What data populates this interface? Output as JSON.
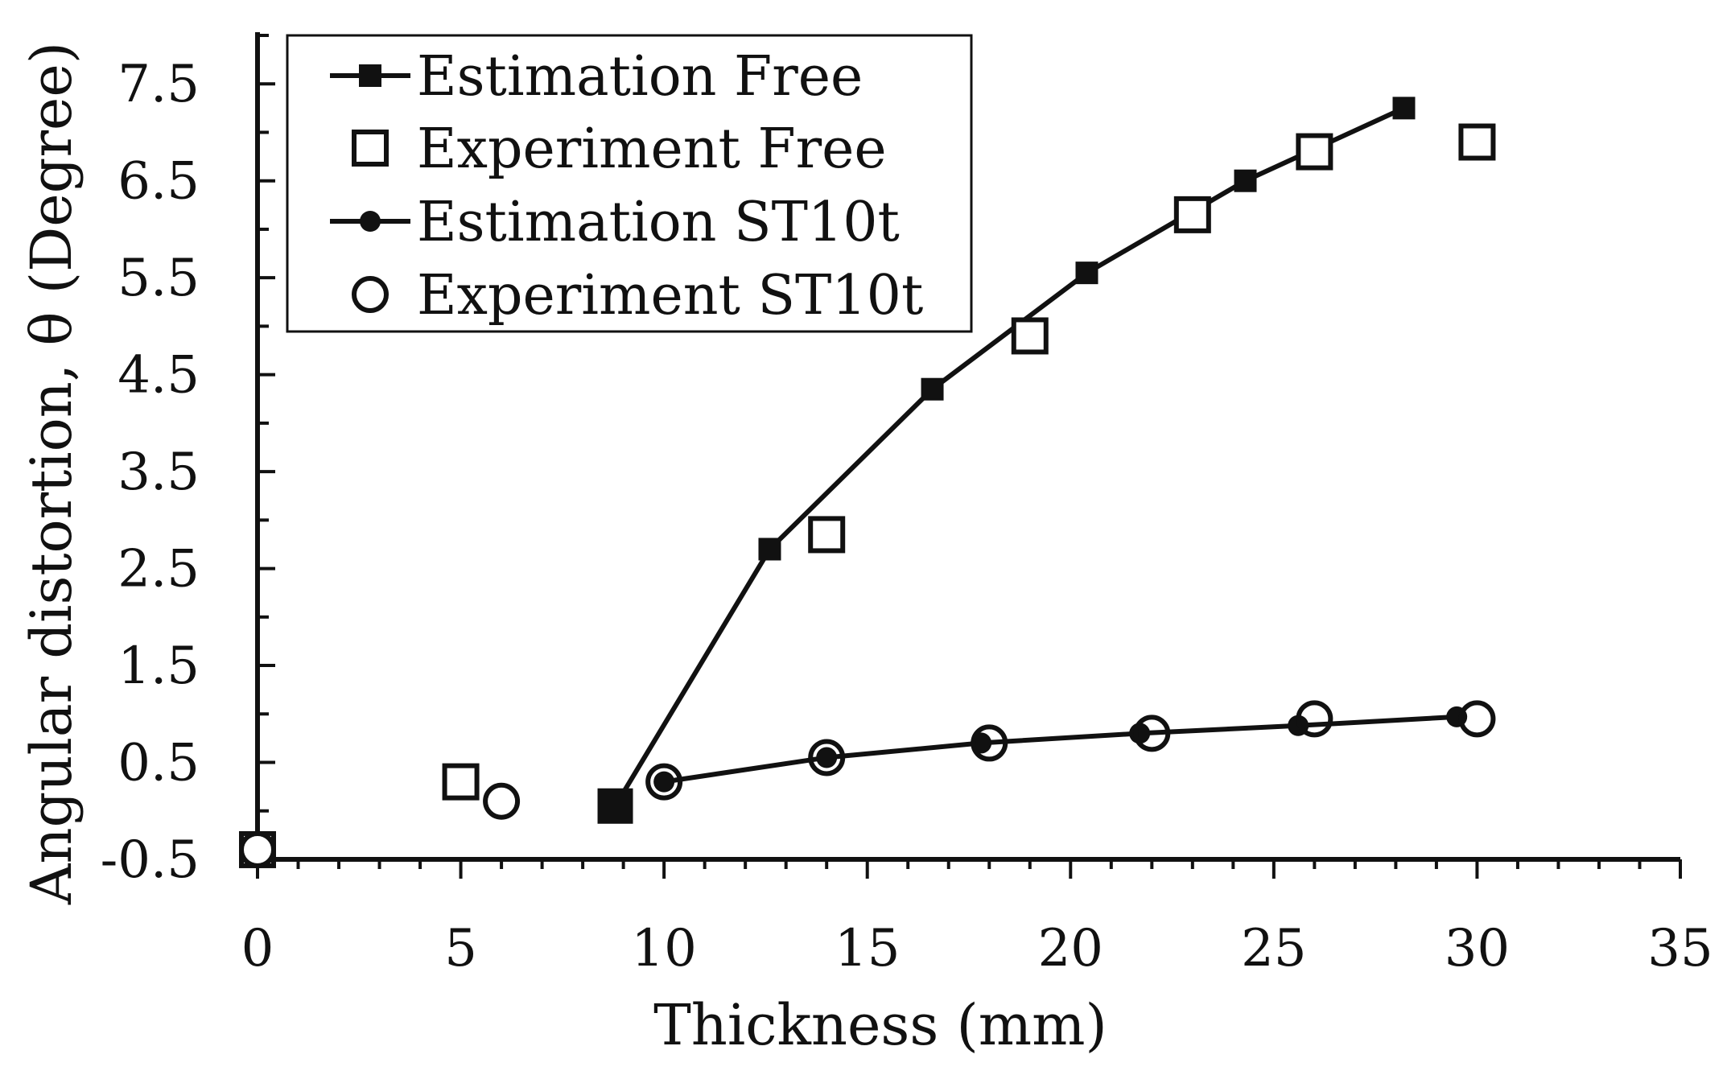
{
  "chart_data": {
    "type": "scatter",
    "title": "",
    "xlabel": "Thickness (mm)",
    "ylabel": "Angular distortion, θ (Degree)",
    "xlim": [
      0,
      35
    ],
    "ylim": [
      -0.5,
      8.0
    ],
    "x_ticks": [
      0,
      5,
      10,
      15,
      20,
      25,
      30,
      35
    ],
    "x_tick_labels": [
      "0",
      "5",
      "10",
      "15",
      "20",
      "25",
      "30",
      "35"
    ],
    "y_ticks": [
      -0.5,
      0.5,
      1.5,
      2.5,
      3.5,
      4.5,
      5.5,
      6.5,
      7.5
    ],
    "y_tick_labels": [
      "-0.5",
      "0.5",
      "1.5",
      "2.5",
      "3.5",
      "4.5",
      "5.5",
      "6.5",
      "7.5"
    ],
    "grid": false,
    "legend_position": "top-left",
    "series": [
      {
        "name": "Estimation Free",
        "style": "line-filled-square",
        "x": [
          0,
          8.8,
          12.6,
          16.6,
          20.4,
          24.3,
          28.2
        ],
        "y": [
          -0.4,
          0.05,
          2.7,
          4.35,
          5.55,
          6.5,
          7.25
        ]
      },
      {
        "name": "Experiment Free",
        "style": "open-square",
        "x": [
          0,
          5,
          8.8,
          14,
          19,
          23,
          26,
          30
        ],
        "y": [
          -0.4,
          0.3,
          0.05,
          2.85,
          4.9,
          6.15,
          6.8,
          6.9
        ]
      },
      {
        "name": "Estimation ST10t",
        "style": "line-filled-circle",
        "x": [
          0,
          10,
          14,
          17.8,
          21.7,
          25.6,
          29.5
        ],
        "y": [
          -0.4,
          0.3,
          0.55,
          0.7,
          0.8,
          0.88,
          0.97
        ]
      },
      {
        "name": "Experiment ST10t",
        "style": "open-circle",
        "x": [
          0,
          6,
          10,
          14,
          18,
          22,
          26,
          30
        ],
        "y": [
          -0.4,
          0.1,
          0.3,
          0.55,
          0.7,
          0.8,
          0.95,
          0.95
        ]
      }
    ]
  }
}
